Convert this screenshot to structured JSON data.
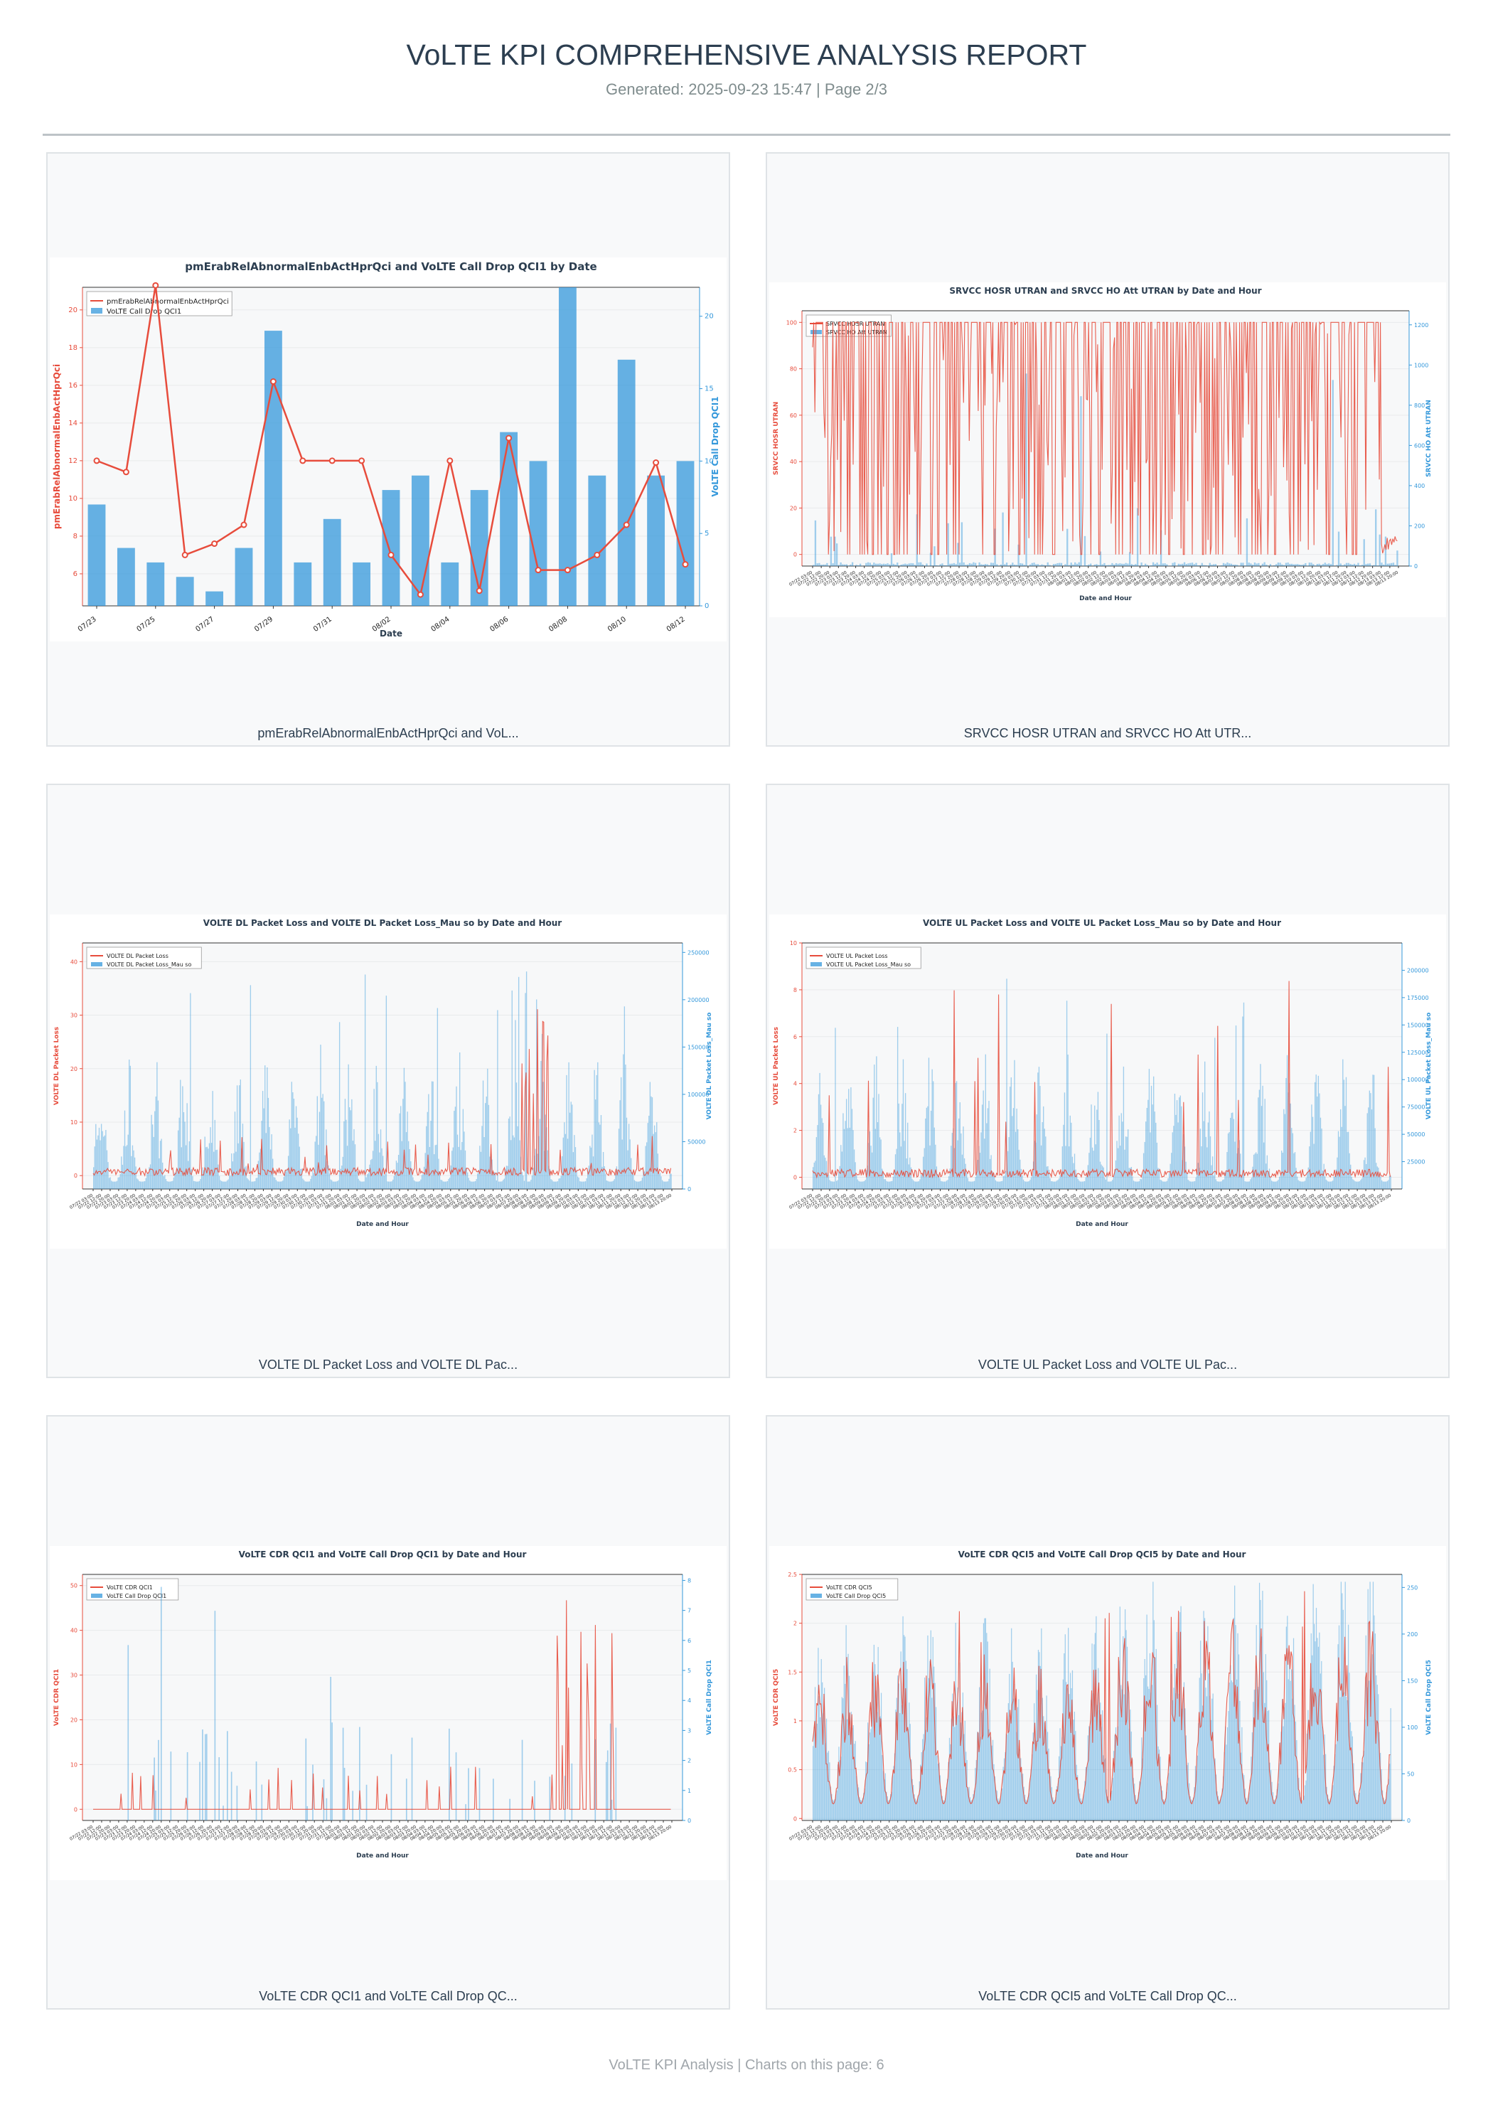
{
  "header": {
    "title": "VoLTE KPI COMPREHENSIVE ANALYSIS REPORT",
    "subtitle": "Generated: 2025-09-23 15:47 | Page 2/3"
  },
  "footer": {
    "text": "VoLTE KPI Analysis | Charts on this page: 6"
  },
  "colors": {
    "left_series": "#e74c3c",
    "right_series": "#3498db",
    "title": "#2c3e50"
  },
  "chart_data": [
    {
      "type": "bar+line",
      "title": "pmErabRelAbnormalEnbActHprQci and VoLTE Call Drop QCI1 by Date",
      "caption": "pmErabRelAbnormalEnbActHprQci and VoL...",
      "xlabel": "Date",
      "ylabel_left": "pmErabRelAbnormalEnbActHprQci",
      "ylabel_right": "VoLTE Call Drop QCI1",
      "ylim_left": [
        4.3,
        21.2
      ],
      "ylim_right": [
        0,
        22
      ],
      "yticks_left": [
        6,
        8,
        10,
        12,
        14,
        16,
        18,
        20
      ],
      "yticks_right": [
        0,
        5,
        10,
        15,
        20
      ],
      "xtick_labels": [
        "07/23",
        "07/25",
        "07/27",
        "07/29",
        "07/31",
        "08/02",
        "08/04",
        "08/06",
        "08/08",
        "08/10",
        "08/12"
      ],
      "categories": [
        "07/23",
        "07/24",
        "07/25",
        "07/26",
        "07/27",
        "07/28",
        "07/29",
        "07/30",
        "07/31",
        "08/01",
        "08/02",
        "08/03",
        "08/04",
        "08/05",
        "08/06",
        "08/07",
        "08/08",
        "08/09",
        "08/10",
        "08/11",
        "08/12"
      ],
      "series": [
        {
          "name": "pmErabRelAbnormalEnbActHprQci",
          "kind": "line",
          "axis": "left",
          "values": [
            12,
            11.4,
            21.3,
            7,
            7.6,
            8.6,
            16.2,
            12,
            12,
            12,
            7,
            4.9,
            12,
            5.1,
            13.2,
            6.2,
            6.2,
            7,
            8.6,
            11.9,
            6.5
          ]
        },
        {
          "name": "VoLTE Call Drop QCI1",
          "kind": "bar",
          "axis": "right",
          "values": [
            7,
            4,
            3,
            2,
            1,
            4,
            19,
            3,
            6,
            3,
            8,
            9,
            3,
            8,
            12,
            10,
            22,
            9,
            17,
            9,
            10
          ]
        }
      ],
      "legend": "upper-left"
    },
    {
      "type": "line+bar",
      "title": "SRVCC HOSR UTRAN and SRVCC HO Att UTRAN by Date and Hour",
      "caption": "SRVCC HOSR UTRAN and SRVCC HO Att UTR...",
      "xlabel": "Date and Hour",
      "ylabel_left": "SRVCC HOSR UTRAN",
      "ylabel_right": "SRVCC HO Att UTRAN",
      "ylim_left": [
        -5,
        105
      ],
      "ylim_right": [
        0,
        1270
      ],
      "yticks_left": [
        0,
        20,
        40,
        60,
        80,
        100
      ],
      "yticks_right": [
        0,
        200,
        400,
        600,
        800,
        1000,
        1200
      ],
      "series": [
        {
          "name": "SRVCC HOSR UTRAN",
          "kind": "line",
          "axis": "left"
        },
        {
          "name": "SRVCC HO Att UTRAN",
          "kind": "bar",
          "axis": "right"
        }
      ],
      "legend": "upper-left"
    },
    {
      "type": "line+bar",
      "title": "VOLTE DL Packet Loss and VOLTE DL Packet Loss_Mau so by Date and Hour",
      "caption": "VOLTE DL Packet Loss and VOLTE DL Pac...",
      "xlabel": "Date and Hour",
      "ylabel_left": "VOLTE DL Packet Loss",
      "ylabel_right": "VOLTE DL Packet Loss_Mau so",
      "ylim_left": [
        -2.5,
        43.5
      ],
      "ylim_right": [
        0,
        260000
      ],
      "yticks_left": [
        0,
        10,
        20,
        30,
        40
      ],
      "yticks_right": [
        0,
        50000,
        100000,
        150000,
        200000,
        250000
      ],
      "series": [
        {
          "name": "VOLTE DL Packet Loss",
          "kind": "line",
          "axis": "left"
        },
        {
          "name": "VOLTE DL Packet Loss_Mau so",
          "kind": "bar",
          "axis": "right"
        }
      ],
      "legend": "upper-left"
    },
    {
      "type": "line+bar",
      "title": "VOLTE UL Packet Loss and VOLTE UL Packet Loss_Mau so by Date and Hour",
      "caption": "VOLTE UL Packet Loss and VOLTE UL Pac...",
      "xlabel": "Date and Hour",
      "ylabel_left": "VOLTE UL Packet Loss",
      "ylabel_right": "VOLTE UL Packet Loss_Mau so",
      "ylim_left": [
        -0.5,
        10
      ],
      "ylim_right": [
        0,
        225000
      ],
      "yticks_left": [
        0,
        2,
        4,
        6,
        8,
        10
      ],
      "yticks_right": [
        25000,
        50000,
        75000,
        100000,
        125000,
        150000,
        175000,
        200000
      ],
      "series": [
        {
          "name": "VOLTE UL Packet Loss",
          "kind": "line",
          "axis": "left"
        },
        {
          "name": "VOLTE UL Packet Loss_Mau so",
          "kind": "bar",
          "axis": "right"
        }
      ],
      "legend": "upper-left"
    },
    {
      "type": "line+bar",
      "title": "VoLTE CDR QCI1 and VoLTE Call Drop QCI1 by Date and Hour",
      "caption": "VoLTE CDR QCI1 and VoLTE Call Drop QC...",
      "xlabel": "Date and Hour",
      "ylabel_left": "VoLTE CDR QCI1",
      "ylabel_right": "VoLTE Call Drop QCI1",
      "ylim_left": [
        -2.5,
        52.5
      ],
      "ylim_right": [
        0,
        8.2
      ],
      "yticks_left": [
        0,
        10,
        20,
        30,
        40,
        50
      ],
      "yticks_right": [
        0,
        1,
        2,
        3,
        4,
        5,
        6,
        7,
        8
      ],
      "series": [
        {
          "name": "VoLTE CDR QCI1",
          "kind": "line",
          "axis": "left"
        },
        {
          "name": "VoLTE Call Drop QCI1",
          "kind": "bar",
          "axis": "right"
        }
      ],
      "legend": "upper-left"
    },
    {
      "type": "line+bar",
      "title": "VoLTE CDR QCI5 and VoLTE Call Drop QCI5 by Date and Hour",
      "caption": "VoLTE CDR QCI5 and VoLTE Call Drop QC...",
      "xlabel": "Date and Hour",
      "ylabel_left": "VoLTE CDR QCI5",
      "ylabel_right": "VoLTE Call Drop QCI5",
      "ylim_left": [
        -0.02,
        2.5
      ],
      "ylim_right": [
        0,
        264
      ],
      "yticks_left": [
        0.0,
        0.5,
        1.0,
        1.5,
        2.0,
        2.5
      ],
      "yticks_right": [
        0,
        50,
        100,
        150,
        200,
        250
      ],
      "series": [
        {
          "name": "VoLTE CDR QCI5",
          "kind": "line",
          "axis": "left"
        },
        {
          "name": "VoLTE Call Drop QCI5",
          "kind": "bar",
          "axis": "right"
        }
      ],
      "legend": "upper-left"
    }
  ]
}
